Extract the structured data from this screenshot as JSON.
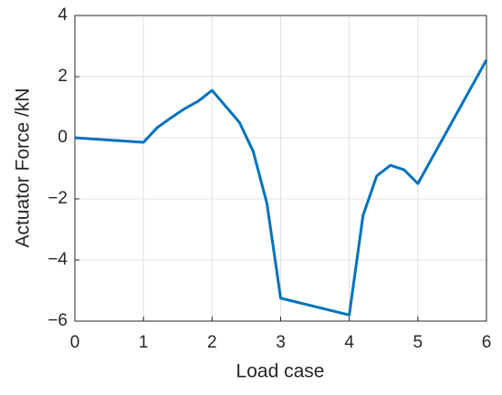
{
  "chart_data": {
    "type": "line",
    "xlabel": "Load case",
    "ylabel": "Actuator Force /kN",
    "x": [
      0,
      1,
      1.2,
      1.4,
      1.6,
      1.8,
      2,
      2.4,
      2.6,
      2.8,
      3,
      4,
      4.2,
      4.4,
      4.6,
      4.8,
      5,
      6
    ],
    "series": [
      {
        "color": "#0072bd",
        "values": [
          0,
          -0.15,
          0.33,
          0.65,
          0.95,
          1.2,
          1.55,
          0.5,
          -0.45,
          -2.15,
          -5.25,
          -5.8,
          -2.55,
          -1.25,
          -0.9,
          -1.05,
          -1.5,
          2.55
        ]
      }
    ],
    "xlim": [
      0,
      6
    ],
    "xticks": [
      0,
      1,
      2,
      3,
      4,
      5,
      6
    ],
    "ylim": [
      -6,
      4
    ],
    "yticks": [
      {
        "value": -6,
        "label": "−6"
      },
      {
        "value": -4,
        "label": "−4"
      },
      {
        "value": -2,
        "label": "−2"
      },
      0,
      2,
      4
    ],
    "grid": true
  }
}
